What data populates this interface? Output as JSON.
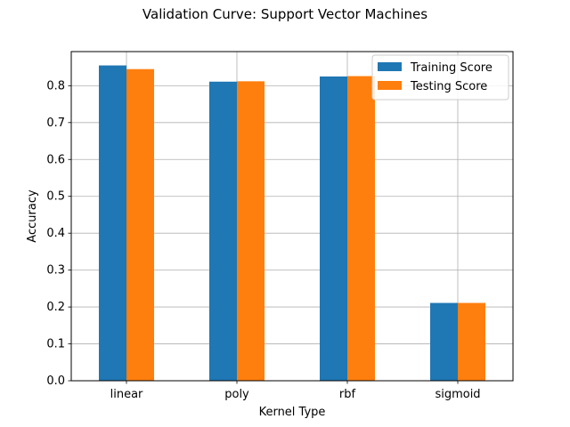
{
  "chart_data": {
    "type": "bar",
    "title": "Validation Curve: Support Vector Machines",
    "xlabel": "Kernel Type",
    "ylabel": "Accuracy",
    "categories": [
      "linear",
      "poly",
      "rbf",
      "sigmoid"
    ],
    "series": [
      {
        "name": "Training Score",
        "color": "#1f77b4",
        "values": [
          0.855,
          0.811,
          0.825,
          0.211
        ]
      },
      {
        "name": "Testing Score",
        "color": "#ff7f0e",
        "values": [
          0.845,
          0.812,
          0.826,
          0.211
        ]
      }
    ],
    "ylim": [
      0,
      0.8925
    ],
    "yticks": [
      "0.0",
      "0.1",
      "0.2",
      "0.3",
      "0.4",
      "0.5",
      "0.6",
      "0.7",
      "0.8"
    ],
    "grid": true,
    "legend_position": "top-right"
  }
}
